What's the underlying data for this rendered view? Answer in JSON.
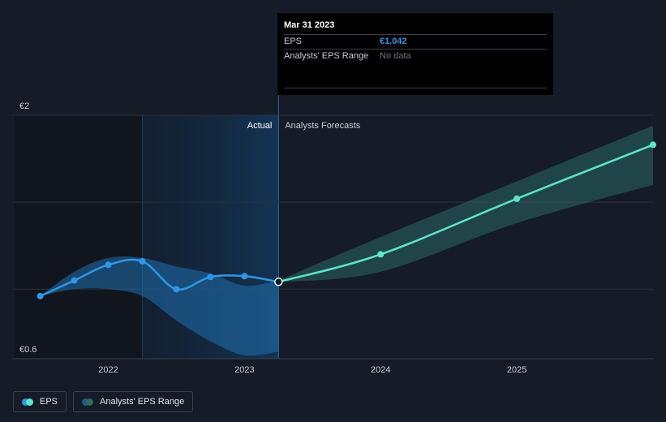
{
  "chart_data": {
    "type": "line",
    "x_ticks": [
      "2022",
      "2023",
      "2024",
      "2025"
    ],
    "y_ticks": [
      "€2",
      "€0.6"
    ],
    "ylim": [
      0.6,
      2.0
    ],
    "region_labels": {
      "actual": "Actual",
      "forecast": "Analysts Forecasts"
    },
    "series": [
      {
        "name": "EPS",
        "color": "#2f96e6",
        "points": [
          {
            "x": 2021.5,
            "y": 0.96
          },
          {
            "x": 2021.75,
            "y": 1.05
          },
          {
            "x": 2022.0,
            "y": 1.14
          },
          {
            "x": 2022.25,
            "y": 1.16
          },
          {
            "x": 2022.5,
            "y": 1.0
          },
          {
            "x": 2022.75,
            "y": 1.07
          },
          {
            "x": 2023.0,
            "y": 1.075
          },
          {
            "x": 2023.25,
            "y": 1.042
          }
        ]
      },
      {
        "name": "EPS Forecast",
        "color": "#5ee5cf",
        "points": [
          {
            "x": 2023.25,
            "y": 1.042
          },
          {
            "x": 2024.0,
            "y": 1.2
          },
          {
            "x": 2025.0,
            "y": 1.52
          },
          {
            "x": 2026.0,
            "y": 1.83
          }
        ]
      }
    ],
    "range_actual": {
      "x": [
        2021.5,
        2021.75,
        2022.0,
        2022.25,
        2022.5,
        2022.75,
        2023.0,
        2023.25
      ],
      "high": [
        0.96,
        1.1,
        1.18,
        1.18,
        1.13,
        1.09,
        1.02,
        1.05
      ],
      "low": [
        0.96,
        1.0,
        1.0,
        0.96,
        0.82,
        0.7,
        0.62,
        0.64
      ]
    },
    "range_forecast": {
      "x": [
        2023.25,
        2024.0,
        2025.0,
        2026.0
      ],
      "high": [
        1.05,
        1.3,
        1.62,
        1.94
      ],
      "low": [
        1.04,
        1.1,
        1.38,
        1.6
      ]
    },
    "highlight_x": 2023.25
  },
  "tooltip": {
    "date": "Mar 31 2023",
    "rows": [
      {
        "label": "EPS",
        "value": "€1.042"
      },
      {
        "label": "Analysts' EPS Range",
        "value": "No data"
      }
    ]
  },
  "legend": {
    "items": [
      {
        "label": "EPS",
        "colors": [
          "#2f96e6",
          "#5ee5cf"
        ]
      },
      {
        "label": "Analysts' EPS Range",
        "colors": [
          "#1f5d86",
          "#2f6b63"
        ]
      }
    ]
  }
}
